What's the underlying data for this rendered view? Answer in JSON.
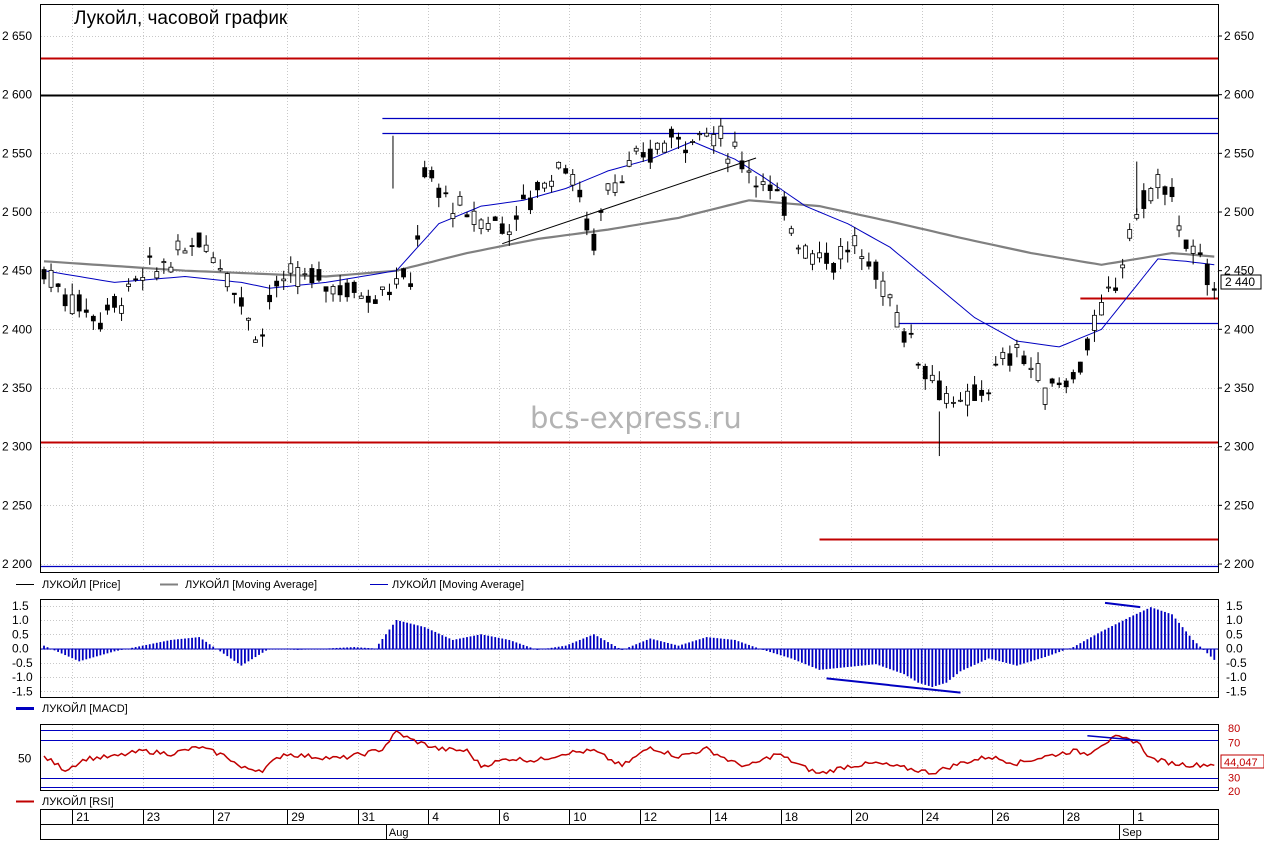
{
  "chart_data": [
    {
      "type": "candlestick",
      "title": "Лукойл, часовой график",
      "watermark": "bcs-express.ru",
      "y_ticks": [
        "2 200",
        "2 250",
        "2 300",
        "2 350",
        "2 400",
        "2 450",
        "2 500",
        "2 550",
        "2 600",
        "2 650"
      ],
      "y_tick_values": [
        2200,
        2250,
        2300,
        2350,
        2400,
        2450,
        2500,
        2550,
        2600,
        2650
      ],
      "ylim": [
        2190,
        2670
      ],
      "last_price_label": "2 440",
      "last_price": 2440,
      "grid": true,
      "legend_placement": "bottom-left",
      "legend": [
        {
          "name": "ЛУКОЙЛ [Price]",
          "color": "#000000"
        },
        {
          "name": "ЛУКОЙЛ [Moving Average]",
          "color": "#808080"
        },
        {
          "name": "ЛУКОЙЛ [Moving Average]",
          "color": "#0000c0"
        }
      ],
      "key_points": {
        "x": [
          0,
          3,
          8,
          14,
          20,
          22,
          26,
          29,
          31,
          31.5,
          32,
          36,
          40,
          46,
          50,
          52,
          54,
          60,
          66,
          70,
          74,
          78,
          80,
          84,
          88,
          94,
          100,
          104,
          108,
          112,
          115,
          119,
          122,
          126,
          130,
          134,
          138,
          142,
          146,
          149,
          152,
          155,
          158,
          160,
          163,
          166
        ],
        "y": [
          2450,
          2430,
          2410,
          2445,
          2465,
          2480,
          2450,
          2410,
          2395,
          2400,
          2430,
          2445,
          2440,
          2430,
          2440,
          2440,
          2530,
          2495,
          2490,
          2520,
          2545,
          2475,
          2525,
          2540,
          2560,
          2570,
          2540,
          2510,
          2470,
          2460,
          2470,
          2440,
          2400,
          2360,
          2330,
          2355,
          2385,
          2350,
          2360,
          2400,
          2440,
          2500,
          2525,
          2510,
          2460,
          2440
        ]
      },
      "ma_long": {
        "color": "#808080",
        "x": [
          0,
          20,
          40,
          50,
          60,
          70,
          80,
          90,
          100,
          110,
          120,
          130,
          140,
          150,
          160,
          166
        ],
        "y": [
          2458,
          2450,
          2445,
          2450,
          2465,
          2477,
          2485,
          2495,
          2510,
          2505,
          2492,
          2478,
          2465,
          2455,
          2465,
          2462
        ]
      },
      "ma_short": {
        "color": "#0000c0",
        "x": [
          0,
          10,
          20,
          28,
          32,
          40,
          50,
          56,
          62,
          68,
          74,
          80,
          86,
          92,
          98,
          102,
          108,
          114,
          120,
          126,
          132,
          138,
          144,
          150,
          154,
          158,
          162,
          166
        ],
        "y": [
          2450,
          2440,
          2445,
          2440,
          2435,
          2440,
          2450,
          2490,
          2505,
          2510,
          2520,
          2535,
          2545,
          2560,
          2545,
          2530,
          2505,
          2490,
          2470,
          2440,
          2410,
          2390,
          2385,
          2400,
          2430,
          2460,
          2458,
          2455
        ]
      },
      "levels": [
        {
          "y": 2631,
          "x_from": 0,
          "x_to": 166,
          "color": "#c00000"
        },
        {
          "y": 2600,
          "x_from": 0,
          "x_to": 166,
          "color": "#000000"
        },
        {
          "y": 2580,
          "x_from": 48,
          "x_to": 166,
          "color": "#0000c0"
        },
        {
          "y": 2567,
          "x_from": 48,
          "x_to": 166,
          "color": "#0000c0"
        },
        {
          "y": 2427,
          "x_from": 147,
          "x_to": 166,
          "color": "#c00000"
        },
        {
          "y": 2405,
          "x_from": 121,
          "x_to": 166,
          "color": "#0000c0"
        },
        {
          "y": 2304,
          "x_from": 0,
          "x_to": 166,
          "color": "#c00000"
        },
        {
          "y": 2221,
          "x_from": 110,
          "x_to": 166,
          "color": "#c00000"
        },
        {
          "y": 2198,
          "x_from": 0,
          "x_to": 166,
          "color": "#0000c0"
        }
      ],
      "trendlines": [
        {
          "x1": 65,
          "y1": 2473,
          "x2": 101,
          "y2": 2546,
          "color": "#000000"
        }
      ]
    },
    {
      "type": "histogram",
      "legend": [
        {
          "name": "ЛУКОЙЛ [MACD]",
          "color": "#0000c0"
        }
      ],
      "y_ticks": [
        "1.5",
        "1.0",
        "0.5",
        "0.0",
        "-0.5",
        "-1.0",
        "-1.5"
      ],
      "y_tick_values": [
        1.5,
        1.0,
        0.5,
        0.0,
        -0.5,
        -1.0,
        -1.5
      ],
      "ylim": [
        -1.65,
        1.65
      ],
      "key_points": {
        "x": [
          0,
          5,
          10,
          14,
          18,
          22,
          28,
          32,
          36,
          40,
          44,
          47,
          50,
          54,
          58,
          62,
          66,
          70,
          74,
          78,
          82,
          86,
          90,
          94,
          98,
          102,
          106,
          110,
          114,
          118,
          122,
          124,
          126,
          128,
          130,
          134,
          138,
          142,
          146,
          150,
          154,
          157,
          160,
          163,
          166
        ],
        "y": [
          0.1,
          -0.45,
          -0.1,
          0.1,
          0.3,
          0.4,
          -0.6,
          0.0,
          -0.05,
          0.0,
          0.05,
          0.0,
          1.0,
          0.75,
          0.3,
          0.5,
          0.3,
          -0.05,
          0.1,
          0.5,
          -0.05,
          0.35,
          0.1,
          0.4,
          0.3,
          -0.05,
          -0.35,
          -0.75,
          -0.65,
          -0.55,
          -0.9,
          -1.2,
          -1.35,
          -1.2,
          -0.8,
          -0.35,
          -0.6,
          -0.3,
          0.05,
          0.6,
          1.1,
          1.45,
          1.2,
          0.3,
          -0.4
        ]
      },
      "divergence_lines": [
        {
          "x1": 150.5,
          "y1": 1.6,
          "x2": 155.5,
          "y2": 1.45
        },
        {
          "x1": 111,
          "y1": -1.05,
          "x2": 130,
          "y2": -1.55
        }
      ]
    },
    {
      "type": "line",
      "legend": [
        {
          "name": "ЛУКОЙЛ [RSI]",
          "color": "#c00000"
        }
      ],
      "y_ticks": [
        "50"
      ],
      "y_tick_values": [
        50
      ],
      "ylim": [
        15,
        85
      ],
      "level_labels": [
        "80",
        "70",
        "30",
        "20"
      ],
      "levels": [
        80,
        70,
        30,
        20
      ],
      "last_value_label": "44,047",
      "last_value": 44.047,
      "key_points": {
        "x": [
          0,
          3,
          6,
          10,
          14,
          18,
          22,
          26,
          28,
          31,
          34,
          38,
          42,
          46,
          48,
          50,
          52,
          56,
          60,
          62,
          66,
          70,
          74,
          78,
          82,
          86,
          90,
          94,
          98,
          100,
          104,
          108,
          110,
          114,
          118,
          122,
          126,
          130,
          134,
          138,
          142,
          146,
          148,
          150,
          152,
          155,
          157,
          160,
          163,
          166
        ],
        "y": [
          52,
          38,
          50,
          52,
          58,
          55,
          62,
          52,
          40,
          38,
          55,
          52,
          50,
          56,
          60,
          78,
          70,
          60,
          58,
          42,
          50,
          48,
          56,
          58,
          42,
          62,
          52,
          60,
          45,
          42,
          55,
          40,
          34,
          42,
          45,
          40,
          35,
          45,
          52,
          45,
          52,
          58,
          55,
          65,
          72,
          68,
          50,
          45,
          43,
          44
        ]
      },
      "divergence_lines": [
        {
          "x1": 148,
          "y1": 74,
          "x2": 155.5,
          "y2": 69
        }
      ]
    }
  ],
  "x_axis": {
    "day_labels": [
      {
        "label": "21",
        "x": 4
      },
      {
        "label": "23",
        "x": 14
      },
      {
        "label": "27",
        "x": 24
      },
      {
        "label": "29",
        "x": 34.5
      },
      {
        "label": "31",
        "x": 44.5
      },
      {
        "label": "4",
        "x": 54.5
      },
      {
        "label": "6",
        "x": 64.5
      },
      {
        "label": "10",
        "x": 74.5
      },
      {
        "label": "12",
        "x": 84.5
      },
      {
        "label": "14",
        "x": 94.5
      },
      {
        "label": "18",
        "x": 104.5
      },
      {
        "label": "20",
        "x": 114.5
      },
      {
        "label": "24",
        "x": 124.5
      },
      {
        "label": "26",
        "x": 134.5
      },
      {
        "label": "28",
        "x": 144.5
      },
      {
        "label": "1",
        "x": 154.5
      }
    ],
    "month_labels": [
      {
        "label": "Aug",
        "x": 48.5
      },
      {
        "label": "Sep",
        "x": 152.5
      }
    ]
  }
}
